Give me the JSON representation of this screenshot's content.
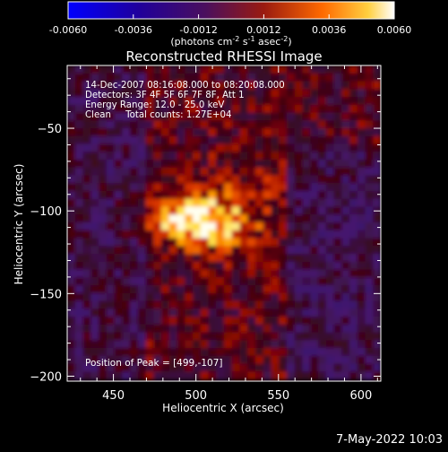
{
  "chart_data": {
    "type": "heatmap",
    "title": "Reconstructed RHESSI Image",
    "xlabel": "Heliocentric X (arcsec)",
    "ylabel": "Heliocentric Y (arcsec)",
    "xlim": [
      422,
      612
    ],
    "ylim": [
      -203,
      -12
    ],
    "x_ticks": [
      450,
      500,
      550,
      600
    ],
    "y_ticks": [
      -50,
      -100,
      -150,
      -200
    ],
    "colorbar": {
      "min": -0.006,
      "max": 0.006,
      "ticks": [
        "-0.0060",
        "-0.0036",
        "-0.0012",
        "0.0012",
        "0.0036",
        "0.0060"
      ],
      "units": "(photons cm<sup>-2</sup> s<sup>-1</sup> asec<sup>-2</sup>)"
    },
    "info_lines": [
      "14-Dec-2007 08:16:08.000 to 08:20:08.000",
      "Detectors: 3F 4F 5F 6F 7F 8F, Att 1",
      "Energy Range: 12.0 - 25.0 keV",
      "Clean     Total counts: 1.27E+04"
    ],
    "peak_label": "Position of Peak = [499,-107]",
    "peak_position": [
      499,
      -107
    ]
  },
  "footer": {
    "timestamp": "7-May-2022 10:03"
  }
}
